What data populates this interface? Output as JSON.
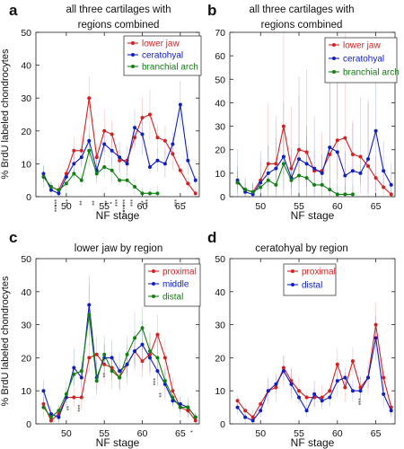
{
  "figure": {
    "y_axis_label": "% BrdU labeled chondrocytes",
    "x_axis_label": "NF stage"
  },
  "chart_data": [
    {
      "panel_letter": "a",
      "type": "line",
      "title": [
        "all three cartilages with",
        "regions combined"
      ],
      "xlabel": "NF stage",
      "ylabel": "% BrdU labeled chondrocytes",
      "xlim": [
        46,
        67.5
      ],
      "ylim": [
        0,
        50
      ],
      "xticks": [
        50,
        55,
        60,
        65
      ],
      "yticks": [
        0,
        10,
        20,
        30,
        40,
        50
      ],
      "legend_position": "top-right",
      "series": [
        {
          "name": "lower jaw",
          "color": "#d42020",
          "x": [
            47,
            48,
            49,
            50,
            51,
            52,
            53,
            54,
            55,
            56,
            57,
            58,
            59,
            60,
            61,
            62,
            63,
            64,
            65,
            66,
            67
          ],
          "y": [
            6,
            3,
            2,
            7,
            14,
            14,
            30,
            12,
            20,
            19,
            11,
            11,
            18,
            24,
            25,
            18,
            17,
            13,
            8,
            4,
            1
          ]
        },
        {
          "name": "ceratohyal",
          "color": "#1020c0",
          "x": [
            47,
            48,
            49,
            50,
            51,
            52,
            53,
            54,
            55,
            56,
            57,
            58,
            59,
            60,
            61,
            62,
            63,
            64,
            65,
            66,
            67
          ],
          "y": [
            7,
            2,
            1,
            6,
            10,
            12,
            17,
            8,
            16,
            14,
            12,
            10,
            21,
            19,
            9,
            11,
            10,
            16,
            28,
            11,
            5
          ]
        },
        {
          "name": "branchial arch",
          "color": "#108010",
          "x": [
            47,
            48,
            49,
            50,
            51,
            52,
            53,
            54,
            55,
            56,
            57,
            58,
            59,
            60,
            61,
            62
          ],
          "y": [
            6,
            3,
            2,
            4,
            7,
            5,
            14,
            7,
            9,
            8,
            5,
            5,
            3,
            1,
            1,
            1
          ]
        }
      ],
      "annotations": [
        "***",
        "***",
        "***",
        "**",
        "**",
        "**",
        "*",
        "***",
        "***",
        "***",
        "***",
        "***",
        "**",
        "***",
        "***",
        "*"
      ]
    },
    {
      "panel_letter": "b",
      "type": "line",
      "title": [
        "all three cartilages with",
        "regions combined"
      ],
      "xlabel": "NF stage",
      "ylabel": "",
      "xlim": [
        46,
        67.5
      ],
      "ylim": [
        0,
        70
      ],
      "xticks": [
        50,
        55,
        60,
        65
      ],
      "yticks": [
        0,
        10,
        20,
        30,
        40,
        50,
        60,
        70
      ],
      "legend_position": "top-right",
      "series": [
        {
          "name": "lower jaw",
          "color": "#d42020",
          "x": [
            47,
            48,
            49,
            50,
            51,
            52,
            53,
            54,
            55,
            56,
            57,
            58,
            59,
            60,
            61,
            62,
            63,
            64,
            65,
            66,
            67
          ],
          "y": [
            6,
            3,
            2,
            7,
            14,
            14,
            30,
            12,
            20,
            19,
            11,
            11,
            18,
            24,
            25,
            18,
            17,
            13,
            8,
            4,
            1
          ]
        },
        {
          "name": "ceratohyal",
          "color": "#1020c0",
          "x": [
            47,
            48,
            49,
            50,
            51,
            52,
            53,
            54,
            55,
            56,
            57,
            58,
            59,
            60,
            61,
            62,
            63,
            64,
            65,
            66,
            67
          ],
          "y": [
            7,
            2,
            1,
            6,
            10,
            12,
            17,
            8,
            16,
            14,
            12,
            10,
            21,
            19,
            9,
            11,
            10,
            16,
            28,
            11,
            5
          ]
        },
        {
          "name": "branchial arch",
          "color": "#108010",
          "x": [
            47,
            48,
            49,
            50,
            51,
            52,
            53,
            54,
            55,
            56,
            57,
            58,
            59,
            60,
            61,
            62
          ],
          "y": [
            6,
            3,
            2,
            4,
            7,
            5,
            14,
            7,
            9,
            8,
            5,
            5,
            3,
            1,
            1,
            1
          ]
        }
      ]
    },
    {
      "panel_letter": "c",
      "type": "line",
      "title": [
        "lower jaw by region"
      ],
      "xlabel": "NF stage",
      "ylabel": "% BrdU labeled chondrocytes",
      "xlim": [
        46,
        67.5
      ],
      "ylim": [
        0,
        50
      ],
      "xticks": [
        50,
        55,
        60,
        65
      ],
      "yticks": [
        0,
        10,
        20,
        30,
        40,
        50
      ],
      "legend_position": "top-right",
      "series": [
        {
          "name": "proximal",
          "color": "#d42020",
          "x": [
            47,
            48,
            49,
            50,
            51,
            52,
            53,
            54,
            55,
            56,
            57,
            58,
            59,
            60,
            61,
            62,
            63,
            64,
            65,
            66,
            67
          ],
          "y": [
            6,
            1,
            3,
            8,
            8,
            8,
            20,
            21,
            18,
            17,
            14,
            18,
            22,
            19,
            21,
            27,
            20,
            10,
            5,
            4,
            1
          ]
        },
        {
          "name": "middle",
          "color": "#1020c0",
          "x": [
            47,
            48,
            49,
            50,
            51,
            52,
            53,
            54,
            55,
            56,
            57,
            58,
            59,
            60,
            61,
            62,
            63,
            64,
            65,
            66,
            67
          ],
          "y": [
            10,
            3,
            2,
            8,
            17,
            14,
            36,
            14,
            20,
            20,
            16,
            18,
            22,
            24,
            20,
            16,
            12,
            7,
            6,
            5,
            2
          ]
        },
        {
          "name": "distal",
          "color": "#108010",
          "x": [
            47,
            48,
            49,
            50,
            51,
            52,
            53,
            54,
            55,
            56,
            57,
            58,
            59,
            60,
            61,
            62,
            63,
            64,
            65,
            66,
            67
          ],
          "y": [
            5,
            2,
            4,
            9,
            15,
            16,
            33,
            13,
            21,
            16,
            14,
            21,
            26,
            29,
            22,
            20,
            13,
            8,
            5,
            5,
            2
          ]
        }
      ],
      "annotations": [
        "**",
        "***",
        "**",
        "***",
        "**",
        "*"
      ]
    },
    {
      "panel_letter": "d",
      "type": "line",
      "title": [
        "ceratohyal by region"
      ],
      "xlabel": "NF stage",
      "ylabel": "",
      "xlim": [
        46,
        67.5
      ],
      "ylim": [
        0,
        50
      ],
      "xticks": [
        50,
        55,
        60,
        65
      ],
      "yticks": [
        0,
        10,
        20,
        30,
        40,
        50
      ],
      "legend_position": "top-center",
      "series": [
        {
          "name": "proximal",
          "color": "#d42020",
          "x": [
            47,
            48,
            49,
            50,
            51,
            52,
            53,
            54,
            55,
            56,
            57,
            58,
            59,
            60,
            61,
            62,
            63,
            64,
            65,
            66,
            67
          ],
          "y": [
            7,
            4,
            2,
            6,
            10,
            11,
            17,
            13,
            10,
            8,
            8,
            8,
            10,
            18,
            11,
            19,
            11,
            14,
            30,
            14,
            5
          ]
        },
        {
          "name": "distal",
          "color": "#1020c0",
          "x": [
            47,
            48,
            49,
            50,
            51,
            52,
            53,
            54,
            55,
            56,
            57,
            58,
            59,
            60,
            61,
            62,
            63,
            64,
            65,
            66,
            67
          ],
          "y": [
            5,
            2,
            1,
            4,
            10,
            12,
            16,
            12,
            8,
            4,
            9,
            7,
            8,
            13,
            14,
            10,
            10,
            14,
            26,
            9,
            4
          ]
        }
      ],
      "annotations": [
        "***"
      ]
    }
  ]
}
